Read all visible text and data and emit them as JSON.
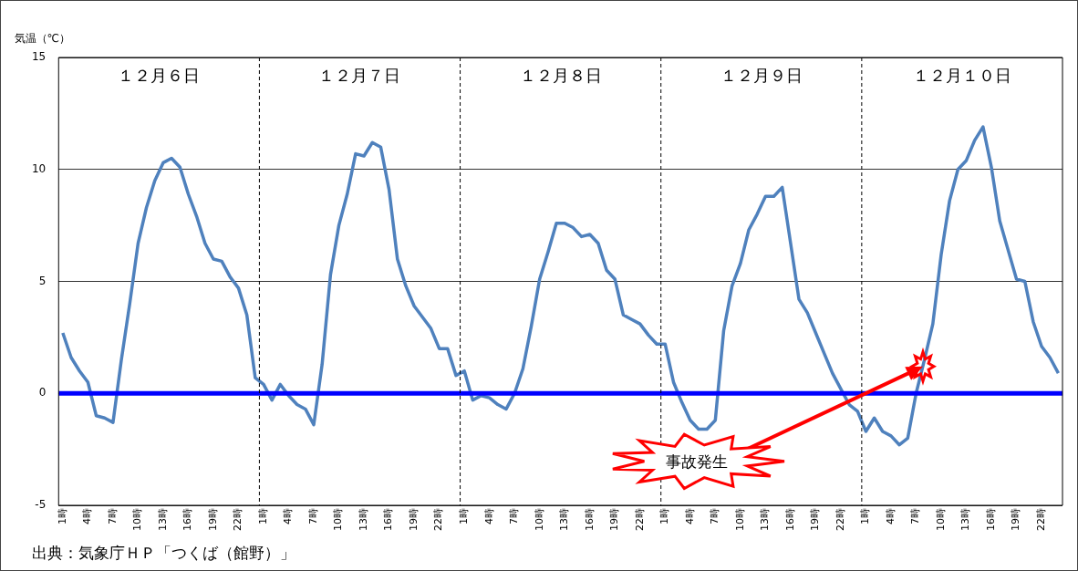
{
  "chart_data": {
    "type": "line",
    "ylabel": "気温（℃）",
    "x": [
      "--12-06T01:00",
      "--12-06T02:00",
      "--12-06T03:00",
      "--12-06T04:00",
      "--12-06T05:00",
      "--12-06T06:00",
      "--12-06T07:00",
      "--12-06T08:00",
      "--12-06T09:00",
      "--12-06T10:00",
      "--12-06T11:00",
      "--12-06T12:00",
      "--12-06T13:00",
      "--12-06T14:00",
      "--12-06T15:00",
      "--12-06T16:00",
      "--12-06T17:00",
      "--12-06T18:00",
      "--12-06T19:00",
      "--12-06T20:00",
      "--12-06T21:00",
      "--12-06T22:00",
      "--12-06T23:00",
      "--12-07T00:00",
      "--12-07T01:00",
      "--12-07T02:00",
      "--12-07T03:00",
      "--12-07T04:00",
      "--12-07T05:00",
      "--12-07T06:00",
      "--12-07T07:00",
      "--12-07T08:00",
      "--12-07T09:00",
      "--12-07T10:00",
      "--12-07T11:00",
      "--12-07T12:00",
      "--12-07T13:00",
      "--12-07T14:00",
      "--12-07T15:00",
      "--12-07T16:00",
      "--12-07T17:00",
      "--12-07T18:00",
      "--12-07T19:00",
      "--12-07T20:00",
      "--12-07T21:00",
      "--12-07T22:00",
      "--12-07T23:00",
      "--12-08T00:00",
      "--12-08T01:00",
      "--12-08T02:00",
      "--12-08T03:00",
      "--12-08T04:00",
      "--12-08T05:00",
      "--12-08T06:00",
      "--12-08T07:00",
      "--12-08T08:00",
      "--12-08T09:00",
      "--12-08T10:00",
      "--12-08T11:00",
      "--12-08T12:00",
      "--12-08T13:00",
      "--12-08T14:00",
      "--12-08T15:00",
      "--12-08T16:00",
      "--12-08T17:00",
      "--12-08T18:00",
      "--12-08T19:00",
      "--12-08T20:00",
      "--12-08T21:00",
      "--12-08T22:00",
      "--12-08T23:00",
      "--12-09T00:00",
      "--12-09T01:00",
      "--12-09T02:00",
      "--12-09T03:00",
      "--12-09T04:00",
      "--12-09T05:00",
      "--12-09T06:00",
      "--12-09T07:00",
      "--12-09T08:00",
      "--12-09T09:00",
      "--12-09T10:00",
      "--12-09T11:00",
      "--12-09T12:00",
      "--12-09T13:00",
      "--12-09T14:00",
      "--12-09T15:00",
      "--12-09T16:00",
      "--12-09T17:00",
      "--12-09T18:00",
      "--12-09T19:00",
      "--12-09T20:00",
      "--12-09T21:00",
      "--12-09T22:00",
      "--12-09T23:00",
      "--12-10T00:00",
      "--12-10T01:00",
      "--12-10T02:00",
      "--12-10T03:00",
      "--12-10T04:00",
      "--12-10T05:00",
      "--12-10T06:00",
      "--12-10T07:00",
      "--12-10T08:00",
      "--12-10T09:00",
      "--12-10T10:00",
      "--12-10T11:00",
      "--12-10T12:00",
      "--12-10T13:00",
      "--12-10T14:00",
      "--12-10T15:00",
      "--12-10T16:00",
      "--12-10T17:00",
      "--12-10T18:00",
      "--12-10T19:00",
      "--12-10T20:00",
      "--12-10T21:00",
      "--12-10T22:00",
      "--12-10T23:00",
      "--12-11T00:00"
    ],
    "series": [
      {
        "color": "#4f81bd",
        "values": [
          2.7,
          1.6,
          1.0,
          0.5,
          -1.0,
          -1.1,
          -1.3,
          1.5,
          4.0,
          6.7,
          8.3,
          9.5,
          10.3,
          10.5,
          10.1,
          8.9,
          7.9,
          6.7,
          6.0,
          5.9,
          5.2,
          4.7,
          3.5,
          0.7,
          0.4,
          -0.3,
          0.4,
          -0.1,
          -0.5,
          -0.7,
          -1.4,
          1.3,
          5.3,
          7.5,
          8.9,
          10.7,
          10.6,
          11.2,
          11.0,
          9.1,
          6.0,
          4.8,
          3.9,
          3.4,
          2.9,
          2.0,
          2.0,
          0.8,
          1.0,
          -0.3,
          -0.1,
          -0.2,
          -0.5,
          -0.7,
          0.0,
          1.1,
          3.0,
          5.1,
          6.3,
          7.6,
          7.6,
          7.4,
          7.0,
          7.1,
          6.7,
          5.5,
          5.1,
          3.5,
          3.3,
          3.1,
          2.6,
          2.2,
          2.2,
          0.5,
          -0.4,
          -1.2,
          -1.6,
          -1.6,
          -1.2,
          2.8,
          4.8,
          5.8,
          7.3,
          8.0,
          8.8,
          8.8,
          9.2,
          6.7,
          4.2,
          3.6,
          2.7,
          1.8,
          0.9,
          0.2,
          -0.5,
          -0.8,
          -1.7,
          -1.1,
          -1.7,
          -1.9,
          -2.3,
          -2.0,
          0.0,
          1.5,
          3.1,
          6.2,
          8.6,
          10.0,
          10.4,
          11.3,
          11.9,
          10.1,
          7.7,
          6.4,
          5.1,
          5.0,
          3.2,
          2.1,
          1.6,
          0.9
        ]
      }
    ],
    "xlim": [
      "--12-06T00:30",
      "--12-11T00:30"
    ],
    "xticks": [
      {
        "value": "--12-06T01:00",
        "label": "1時"
      },
      {
        "value": "--12-06T04:00",
        "label": "4時"
      },
      {
        "value": "--12-06T07:00",
        "label": "7時"
      },
      {
        "value": "--12-06T10:00",
        "label": "10時"
      },
      {
        "value": "--12-06T13:00",
        "label": "13時"
      },
      {
        "value": "--12-06T16:00",
        "label": "16時"
      },
      {
        "value": "--12-06T19:00",
        "label": "19時"
      },
      {
        "value": "--12-06T22:00",
        "label": "22時"
      },
      {
        "value": "--12-07T01:00",
        "label": "1時"
      },
      {
        "value": "--12-07T04:00",
        "label": "4時"
      },
      {
        "value": "--12-07T07:00",
        "label": "7時"
      },
      {
        "value": "--12-07T10:00",
        "label": "10時"
      },
      {
        "value": "--12-07T13:00",
        "label": "13時"
      },
      {
        "value": "--12-07T16:00",
        "label": "16時"
      },
      {
        "value": "--12-07T19:00",
        "label": "19時"
      },
      {
        "value": "--12-07T22:00",
        "label": "22時"
      },
      {
        "value": "--12-08T01:00",
        "label": "1時"
      },
      {
        "value": "--12-08T04:00",
        "label": "4時"
      },
      {
        "value": "--12-08T07:00",
        "label": "7時"
      },
      {
        "value": "--12-08T10:00",
        "label": "10時"
      },
      {
        "value": "--12-08T13:00",
        "label": "13時"
      },
      {
        "value": "--12-08T16:00",
        "label": "16時"
      },
      {
        "value": "--12-08T19:00",
        "label": "19時"
      },
      {
        "value": "--12-08T22:00",
        "label": "22時"
      },
      {
        "value": "--12-09T01:00",
        "label": "1時"
      },
      {
        "value": "--12-09T04:00",
        "label": "4時"
      },
      {
        "value": "--12-09T07:00",
        "label": "7時"
      },
      {
        "value": "--12-09T10:00",
        "label": "10時"
      },
      {
        "value": "--12-09T13:00",
        "label": "13時"
      },
      {
        "value": "--12-09T16:00",
        "label": "16時"
      },
      {
        "value": "--12-09T19:00",
        "label": "19時"
      },
      {
        "value": "--12-09T22:00",
        "label": "22時"
      },
      {
        "value": "--12-10T01:00",
        "label": "1時"
      },
      {
        "value": "--12-10T04:00",
        "label": "4時"
      },
      {
        "value": "--12-10T07:00",
        "label": "7時"
      },
      {
        "value": "--12-10T10:00",
        "label": "10時"
      },
      {
        "value": "--12-10T13:00",
        "label": "13時"
      },
      {
        "value": "--12-10T16:00",
        "label": "16時"
      },
      {
        "value": "--12-10T19:00",
        "label": "19時"
      },
      {
        "value": "--12-10T22:00",
        "label": "22時"
      }
    ],
    "ylim": [
      -5,
      15
    ],
    "yticks": [
      -5,
      0,
      5,
      10,
      15
    ],
    "grid": "y",
    "ref_lines": [
      {
        "axis": "y",
        "value": 0,
        "color": "#0000ff"
      },
      {
        "axis": "x",
        "value": "--12-07T00:30",
        "color": "#000000",
        "line_style": "dashed"
      },
      {
        "axis": "x",
        "value": "--12-08T00:30",
        "color": "#000000",
        "line_style": "dashed"
      },
      {
        "axis": "x",
        "value": "--12-09T00:30",
        "color": "#000000",
        "line_style": "dashed"
      },
      {
        "axis": "x",
        "value": "--12-10T00:30",
        "color": "#000000",
        "line_style": "dashed"
      }
    ],
    "x2lim": [
      "--12-06T00:30",
      "--12-11T00:30"
    ],
    "x2ticks": [
      {
        "value": "--12-06T12:30",
        "label": "１２月６日"
      },
      {
        "value": "--12-07T12:30",
        "label": "１２月７日"
      },
      {
        "value": "--12-08T12:30",
        "label": "１２月８日"
      },
      {
        "value": "--12-09T12:30",
        "label": "１２月９日"
      },
      {
        "value": "--12-10T12:30",
        "label": "１２月１０日"
      }
    ],
    "annotations": [
      "事故発生",
      "出典：気象庁ＨＰ「つくば（館野）」"
    ]
  }
}
